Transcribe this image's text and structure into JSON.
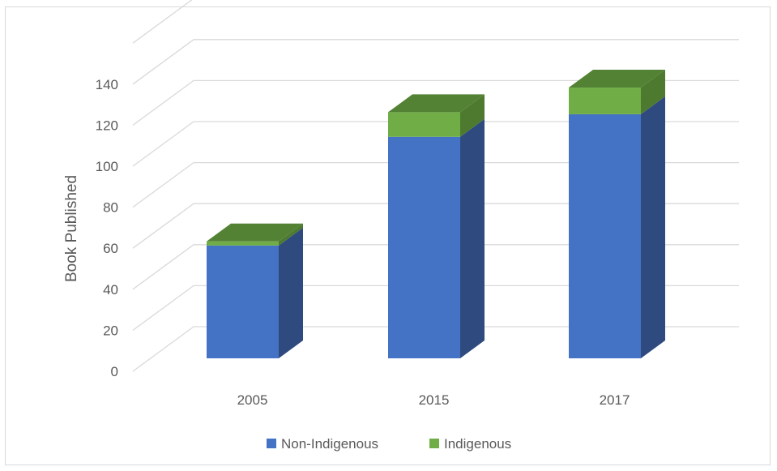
{
  "chart_data": {
    "type": "bar",
    "stacked": true,
    "three_d": true,
    "categories": [
      "2005",
      "2015",
      "2017"
    ],
    "series": [
      {
        "name": "Non-Indigenous",
        "values": [
          55,
          108,
          119
        ],
        "color": "#4472C4",
        "side_color": "#2E4A7F"
      },
      {
        "name": "Indigenous",
        "values": [
          2,
          12,
          13
        ],
        "color": "#70AD47",
        "side_color": "#4E7A2F",
        "top_color": "#548235"
      }
    ],
    "title": "",
    "xlabel": "",
    "ylabel": "Book Published",
    "ylim": [
      0,
      160
    ],
    "yticks": [
      0,
      20,
      40,
      60,
      80,
      100,
      120,
      140
    ],
    "grid": true,
    "legend_position": "bottom"
  }
}
